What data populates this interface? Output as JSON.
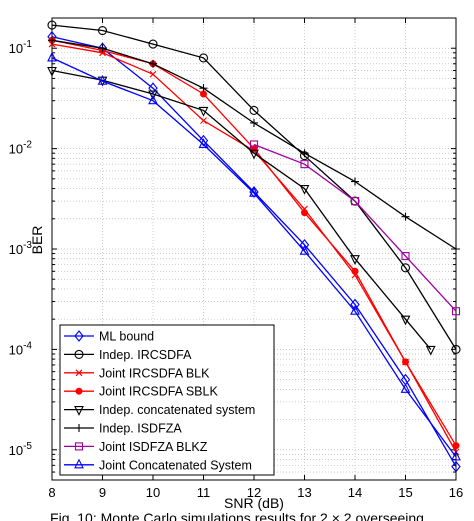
{
  "chart_data": {
    "type": "line",
    "xlabel": "SNR (dB)",
    "ylabel": "BER",
    "xlim": [
      8,
      16
    ],
    "ylim": [
      5e-06,
      0.2
    ],
    "yscale": "log",
    "grid": "dotted major and minor",
    "legend_position": "bottom-left",
    "x_ticks": [
      "8",
      "9",
      "10",
      "11",
      "12",
      "13",
      "14",
      "15",
      "16"
    ],
    "y_ticks": [
      {
        "value": 0.1,
        "base": "10",
        "exp": "-1"
      },
      {
        "value": 0.01,
        "base": "10",
        "exp": "-2"
      },
      {
        "value": 0.001,
        "base": "10",
        "exp": "-3"
      },
      {
        "value": 0.0001,
        "base": "10",
        "exp": "-4"
      },
      {
        "value": 1e-05,
        "base": "10",
        "exp": "-5"
      }
    ],
    "series": [
      {
        "name": "ML bound",
        "color": "#0000ff",
        "marker": "diamond",
        "x": [
          8,
          9,
          10,
          11,
          12,
          13,
          14,
          15,
          16
        ],
        "y": [
          0.13,
          0.1,
          0.04,
          0.012,
          0.0037,
          0.0011,
          0.00028,
          5e-05,
          6.8e-06
        ]
      },
      {
        "name": "Indep. IRCSDFA",
        "color": "#000000",
        "marker": "circle",
        "x": [
          8,
          9,
          10,
          11,
          12,
          13,
          14,
          15,
          16
        ],
        "y": [
          0.17,
          0.15,
          0.11,
          0.08,
          0.024,
          0.0085,
          0.003,
          0.00065,
          0.0001
        ]
      },
      {
        "name": "Joint IRCSDFA BLK",
        "color": "#ff0000",
        "marker": "x",
        "x": [
          8,
          9,
          10,
          11,
          12,
          13,
          14,
          15,
          16
        ],
        "y": [
          0.11,
          0.09,
          0.055,
          0.019,
          0.0095,
          0.0025,
          0.00055,
          7.5e-05,
          9.5e-06
        ]
      },
      {
        "name": "Joint IRCSDFA SBLK",
        "color": "#ff0000",
        "marker": "dot",
        "x": [
          8,
          9,
          10,
          11,
          12,
          13,
          14,
          15,
          16
        ],
        "y": [
          0.12,
          0.095,
          0.07,
          0.035,
          0.01,
          0.0023,
          0.0006,
          7.5e-05,
          1.1e-05
        ]
      },
      {
        "name": "Indep. concatenated system",
        "color": "#000000",
        "marker": "triangle-down",
        "x": [
          8,
          9,
          10,
          11,
          12,
          13,
          14,
          15,
          15.5
        ],
        "y": [
          0.06,
          0.048,
          0.035,
          0.024,
          0.009,
          0.004,
          0.0008,
          0.0002,
          0.0001
        ]
      },
      {
        "name": "Indep. ISDFZA",
        "color": "#000000",
        "marker": "plus",
        "x": [
          8,
          9,
          10,
          11,
          12,
          13,
          14,
          15,
          16
        ],
        "y": [
          0.12,
          0.1,
          0.07,
          0.04,
          0.018,
          0.009,
          0.0047,
          0.0021,
          0.001
        ]
      },
      {
        "name": "Joint ISDFZA BLKZ",
        "color": "#a000a0",
        "marker": "square",
        "x": [
          12,
          13,
          14,
          15,
          16
        ],
        "y": [
          0.011,
          0.007,
          0.003,
          0.00085,
          0.00024
        ]
      },
      {
        "name": "Joint Concatenated System",
        "color": "#0000ff",
        "marker": "triangle-up",
        "x": [
          8,
          9,
          10,
          11,
          12,
          13,
          14,
          15,
          16
        ],
        "y": [
          0.08,
          0.047,
          0.03,
          0.011,
          0.0036,
          0.00095,
          0.00024,
          4e-05,
          8.5e-06
        ]
      }
    ]
  },
  "caption": "Fig. 10: Monte Carlo simulations results for 2 × 2 overseeing"
}
